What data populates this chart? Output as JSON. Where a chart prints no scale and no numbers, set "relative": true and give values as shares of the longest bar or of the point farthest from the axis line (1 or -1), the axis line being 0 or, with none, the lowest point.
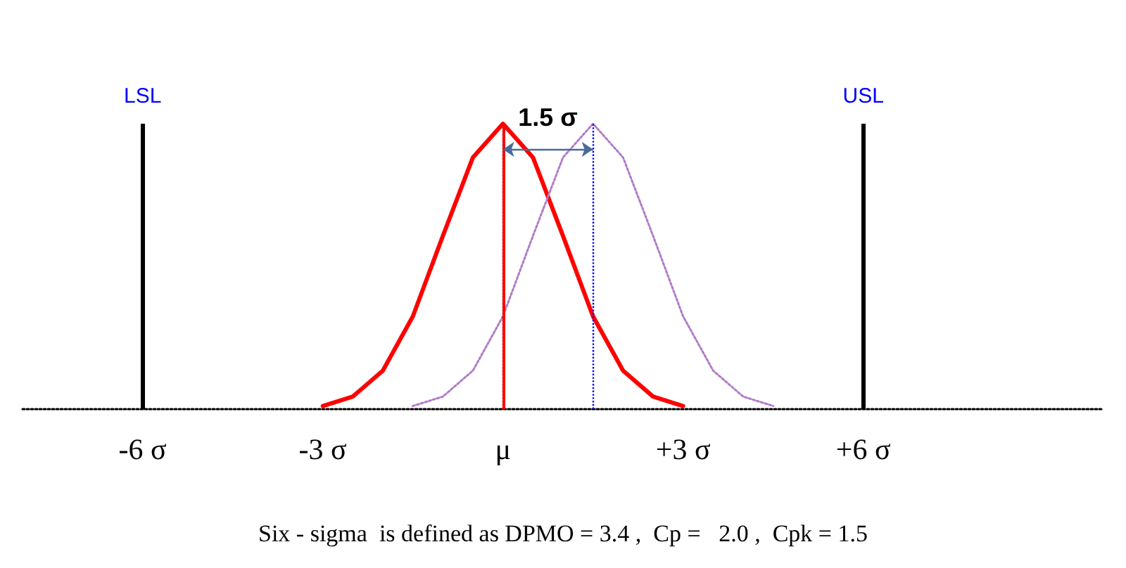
{
  "chart_data": {
    "type": "line",
    "relative": true,
    "xlim": [
      -8,
      10
    ],
    "xticks": [
      {
        "value": -6,
        "label": "-6 σ"
      },
      {
        "value": -3,
        "label": "-3 σ"
      },
      {
        "value": 0,
        "label": "μ"
      },
      {
        "value": 3,
        "label": "+3 σ"
      },
      {
        "value": 6,
        "label": "+6 σ"
      }
    ],
    "series": [
      {
        "color": "#ff0000",
        "line_style": "solid",
        "x": [
          -3,
          -2.5,
          -2,
          -1.5,
          -1,
          -0.5,
          0,
          0.5,
          1,
          1.5,
          2,
          2.5,
          3
        ],
        "values": [
          0.011,
          0.044,
          0.135,
          0.325,
          0.607,
          0.882,
          1,
          0.882,
          0.607,
          0.325,
          0.135,
          0.044,
          0.011
        ]
      },
      {
        "color": "#b07cc6",
        "line_style": "dotted",
        "x": [
          -1.5,
          -1,
          -0.5,
          0,
          0.5,
          1,
          1.5,
          2,
          2.5,
          3,
          3.5,
          4,
          4.5
        ],
        "values": [
          0.011,
          0.044,
          0.135,
          0.325,
          0.607,
          0.882,
          1,
          0.882,
          0.607,
          0.325,
          0.135,
          0.044,
          0.011
        ]
      }
    ],
    "ref_lines": [
      {
        "axis": "x",
        "value": -6,
        "label": "LSL",
        "color": "#000000",
        "line_style": "solid"
      },
      {
        "axis": "x",
        "value": 6,
        "label": "USL",
        "color": "#000000",
        "line_style": "solid"
      },
      {
        "axis": "x",
        "value": 0,
        "color": "#000000",
        "line_style": "dotted"
      },
      {
        "axis": "x",
        "value": 0,
        "color": "#ff0000",
        "line_style": "solid"
      },
      {
        "axis": "x",
        "value": 1.5,
        "color": "#0000ff",
        "line_style": "dotted"
      }
    ],
    "annotations": [
      "1.5 σ",
      "Six - sigma  is defined as DPMO = 3.4 ,  Cp =   2.0 ,  Cpk = 1.5"
    ]
  }
}
